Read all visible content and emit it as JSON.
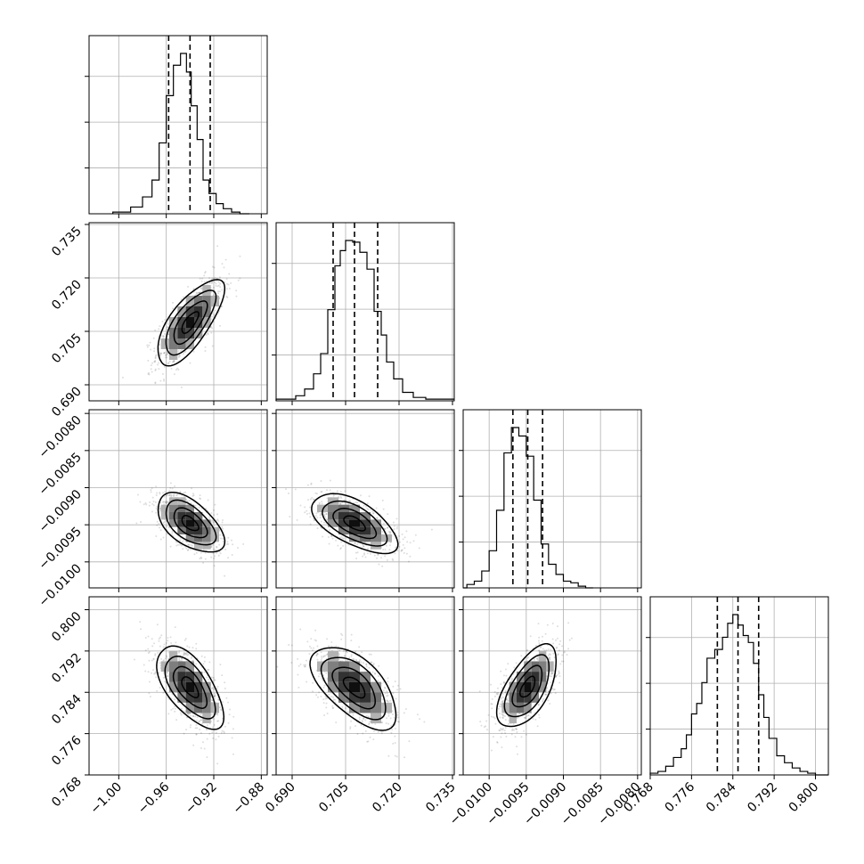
{
  "chart_data": {
    "type": "corner",
    "parameters": [
      {
        "range": [
          -1.025,
          -0.875
        ],
        "ticks": [
          -1.0,
          -0.96,
          -0.92,
          -0.88
        ],
        "tick_labels": [
          "−1.00",
          "−0.96",
          "−0.92",
          "−0.88"
        ],
        "median": -0.94,
        "sigma": 0.014,
        "quantiles": [
          -0.958,
          -0.94,
          -0.923
        ],
        "histogram": {
          "edges": [
            -1.005,
            -0.99,
            -0.98,
            -0.972,
            -0.966,
            -0.96,
            -0.954,
            -0.948,
            -0.943,
            -0.939,
            -0.934,
            -0.929,
            -0.924,
            -0.918,
            -0.912,
            -0.905,
            -0.898,
            -0.89
          ],
          "counts": [
            1,
            4,
            10,
            20,
            42,
            70,
            88,
            95,
            84,
            64,
            44,
            20,
            12,
            6,
            3,
            1,
            0
          ]
        }
      },
      {
        "range": [
          0.6855,
          0.7355
        ],
        "ticks": [
          0.69,
          0.705,
          0.72,
          0.735
        ],
        "tick_labels": [
          "0.690",
          "0.705",
          "0.720",
          "0.735"
        ],
        "median": 0.7075,
        "sigma": 0.006,
        "quantiles": [
          0.7015,
          0.7075,
          0.714
        ],
        "histogram": {
          "edges": [
            0.6855,
            0.691,
            0.6935,
            0.696,
            0.698,
            0.7,
            0.702,
            0.7035,
            0.705,
            0.707,
            0.709,
            0.711,
            0.713,
            0.715,
            0.7165,
            0.7185,
            0.721,
            0.724,
            0.7275,
            0.7355
          ],
          "counts": [
            1,
            3,
            7,
            16,
            28,
            54,
            80,
            89,
            95,
            94,
            88,
            78,
            53,
            39,
            23,
            13,
            5,
            2,
            1
          ]
        }
      },
      {
        "range": [
          -0.01035,
          -0.00795
        ],
        "ticks": [
          -0.01,
          -0.0095,
          -0.009,
          -0.0085,
          -0.008
        ],
        "tick_labels": [
          "−0.0100",
          "−0.0095",
          "−0.0090",
          "−0.0085",
          "−0.0080"
        ],
        "median": -0.00948,
        "sigma": 0.0002,
        "quantiles": [
          -0.00968,
          -0.00948,
          -0.00928
        ],
        "histogram": {
          "edges": [
            -0.01035,
            -0.0103,
            -0.0102,
            -0.0101,
            -0.01,
            -0.0099,
            -0.0098,
            -0.0097,
            -0.0096,
            -0.0095,
            -0.0094,
            -0.0093,
            -0.0092,
            -0.0091,
            -0.009,
            -0.0089,
            -0.0088,
            -0.0087,
            -0.0086
          ],
          "counts": [
            0,
            2,
            4,
            10,
            22,
            46,
            80,
            95,
            90,
            78,
            52,
            26,
            14,
            8,
            4,
            3,
            1,
            0
          ]
        }
      },
      {
        "range": [
          0.768,
          0.8025
        ],
        "ticks": [
          0.768,
          0.776,
          0.784,
          0.792,
          0.8
        ],
        "tick_labels": [
          "0.768",
          "0.776",
          "0.784",
          "0.792",
          "0.800"
        ],
        "median": 0.785,
        "sigma": 0.004,
        "quantiles": [
          0.781,
          0.785,
          0.789
        ],
        "histogram": {
          "edges": [
            0.768,
            0.7695,
            0.771,
            0.7725,
            0.774,
            0.775,
            0.776,
            0.777,
            0.778,
            0.779,
            0.7805,
            0.782,
            0.783,
            0.784,
            0.785,
            0.786,
            0.787,
            0.788,
            0.789,
            0.79,
            0.791,
            0.7925,
            0.794,
            0.7955,
            0.797,
            0.7985,
            0.8,
            0.8025
          ],
          "counts": [
            1,
            2,
            5,
            10,
            15,
            23,
            35,
            41,
            53,
            67,
            72,
            79,
            87,
            92,
            86,
            80,
            76,
            64,
            46,
            33,
            21,
            11,
            7,
            4,
            2,
            1,
            0
          ]
        }
      }
    ],
    "correlations": {
      "1-0": 0.72,
      "2-0": -0.55,
      "2-1": -0.6,
      "3-0": -0.62,
      "3-1": -0.6,
      "3-2": 0.6
    },
    "contour_levels_sigma": [
      0.5,
      1.0,
      1.5,
      2.0
    ],
    "grid": true
  }
}
